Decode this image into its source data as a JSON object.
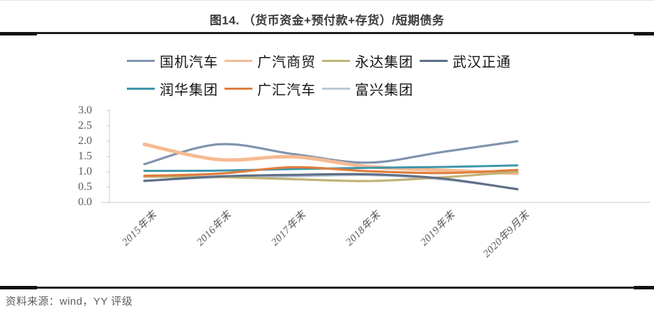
{
  "figure": {
    "title": "图14.  （货币资金+预付款+存货）/短期债务",
    "source_note": "资料来源：wind，YY 评级"
  },
  "chart_data": {
    "type": "line",
    "title": "（货币资金+预付款+存货）/短期债务",
    "line_style": "smooth",
    "grid": false,
    "legend_position": "top-left",
    "categories": [
      "2015年末",
      "2016年末",
      "2017年末",
      "2018年末",
      "2019年末",
      "2020年9月末"
    ],
    "series": [
      {
        "name": "国机汽车",
        "color": "#8093AE",
        "stroke_width": 3.2,
        "values": [
          1.25,
          1.9,
          1.58,
          1.3,
          1.65,
          2.0
        ]
      },
      {
        "name": "广汽商贸",
        "color": "#F5BB93",
        "stroke_width": 5.0,
        "values": [
          1.9,
          1.4,
          1.49,
          1.17,
          1.05,
          0.95
        ]
      },
      {
        "name": "永达集团",
        "color": "#BFB377",
        "stroke_width": 3.2,
        "values": [
          0.84,
          0.83,
          0.76,
          0.7,
          0.82,
          1.0
        ]
      },
      {
        "name": "武汉正通",
        "color": "#5E6F88",
        "stroke_width": 3.2,
        "values": [
          0.7,
          0.85,
          0.9,
          0.92,
          0.78,
          0.43
        ]
      },
      {
        "name": "润华集团",
        "color": "#3D96AA",
        "stroke_width": 3.0,
        "values": [
          1.03,
          1.04,
          1.09,
          1.13,
          1.16,
          1.21
        ]
      },
      {
        "name": "广汇汽车",
        "color": "#DE7E3E",
        "stroke_width": 3.2,
        "values": [
          0.87,
          0.94,
          1.15,
          1.02,
          0.96,
          1.06
        ]
      },
      {
        "name": "富兴集团",
        "color": "#BCC7D6",
        "stroke_width": 3.0,
        "values": [
          0.72,
          0.82,
          0.85,
          0.89,
          0.75,
          0.44
        ]
      }
    ],
    "draw_order": [
      6,
      0,
      1,
      2,
      3,
      4,
      5
    ],
    "legend_rows": [
      [
        0,
        1,
        2,
        3
      ],
      [
        4,
        5,
        6
      ]
    ],
    "ylim": [
      0,
      3
    ],
    "ytick_step": 0.5,
    "ytick_labels": [
      "0.0",
      "0.5",
      "1.0",
      "1.5",
      "2.0",
      "2.5",
      "3.0"
    ],
    "axis_color": "#D9D9D9",
    "tick_label_color": "#595959"
  }
}
